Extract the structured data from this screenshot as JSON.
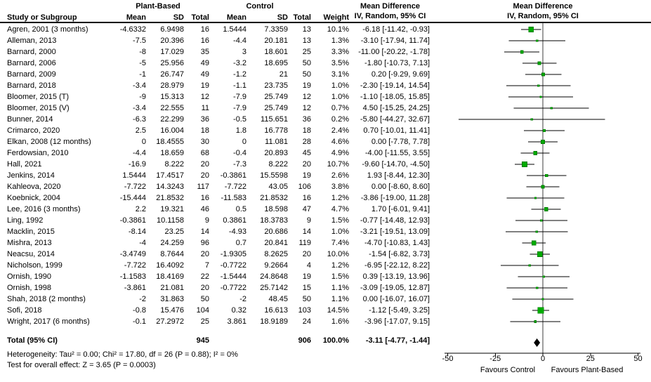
{
  "chart_data": {
    "type": "forest",
    "groups": {
      "experimental": "Plant-Based",
      "control": "Control"
    },
    "effect_header": {
      "title": "Mean Difference",
      "subtitle": "IV, Random, 95% CI"
    },
    "plot_header": {
      "title": "Mean Difference",
      "subtitle": "IV, Random, 95% CI"
    },
    "columns": {
      "study": "Study or Subgroup",
      "mean": "Mean",
      "sd": "SD",
      "total": "Total",
      "weight": "Weight"
    },
    "studies": [
      {
        "name": "Agren, 2001 (3 months)",
        "pb_mean": "-4.6332",
        "pb_sd": "6.9498",
        "pb_n": "16",
        "ctrl_mean": "1.5444",
        "ctrl_sd": "7.3359",
        "ctrl_n": "13",
        "weight": "10.1%",
        "md_label": "-6.18 [-11.42, -0.93]",
        "md": -6.18,
        "ci": [
          -11.42,
          -0.93
        ]
      },
      {
        "name": "Alleman, 2013",
        "pb_mean": "-7.5",
        "pb_sd": "20.396",
        "pb_n": "16",
        "ctrl_mean": "-4.4",
        "ctrl_sd": "20.181",
        "ctrl_n": "13",
        "weight": "1.3%",
        "md_label": "-3.10 [-17.94, 11.74]",
        "md": -3.1,
        "ci": [
          -17.94,
          11.74
        ]
      },
      {
        "name": "Barnard, 2000",
        "pb_mean": "-8",
        "pb_sd": "17.029",
        "pb_n": "35",
        "ctrl_mean": "3",
        "ctrl_sd": "18.601",
        "ctrl_n": "25",
        "weight": "3.3%",
        "md_label": "-11.00 [-20.22, -1.78]",
        "md": -11.0,
        "ci": [
          -20.22,
          -1.78
        ]
      },
      {
        "name": "Barnard, 2006",
        "pb_mean": "-5",
        "pb_sd": "25.956",
        "pb_n": "49",
        "ctrl_mean": "-3.2",
        "ctrl_sd": "18.695",
        "ctrl_n": "50",
        "weight": "3.5%",
        "md_label": "-1.80 [-10.73, 7.13]",
        "md": -1.8,
        "ci": [
          -10.73,
          7.13
        ]
      },
      {
        "name": "Barnard, 2009",
        "pb_mean": "-1",
        "pb_sd": "26.747",
        "pb_n": "49",
        "ctrl_mean": "-1.2",
        "ctrl_sd": "21",
        "ctrl_n": "50",
        "weight": "3.1%",
        "md_label": "0.20 [-9.29, 9.69]",
        "md": 0.2,
        "ci": [
          -9.29,
          9.69
        ]
      },
      {
        "name": "Barnard, 2018",
        "pb_mean": "-3.4",
        "pb_sd": "28.979",
        "pb_n": "19",
        "ctrl_mean": "-1.1",
        "ctrl_sd": "23.735",
        "ctrl_n": "19",
        "weight": "1.0%",
        "md_label": "-2.30 [-19.14, 14.54]",
        "md": -2.3,
        "ci": [
          -19.14,
          14.54
        ]
      },
      {
        "name": "Bloomer, 2015 (T)",
        "pb_mean": "-9",
        "pb_sd": "15.313",
        "pb_n": "12",
        "ctrl_mean": "-7.9",
        "ctrl_sd": "25.749",
        "ctrl_n": "12",
        "weight": "1.0%",
        "md_label": "-1.10 [-18.05, 15.85]",
        "md": -1.1,
        "ci": [
          -18.05,
          15.85
        ]
      },
      {
        "name": "Bloomer, 2015 (V)",
        "pb_mean": "-3.4",
        "pb_sd": "22.555",
        "pb_n": "11",
        "ctrl_mean": "-7.9",
        "ctrl_sd": "25.749",
        "ctrl_n": "12",
        "weight": "0.7%",
        "md_label": "4.50 [-15.25, 24.25]",
        "md": 4.5,
        "ci": [
          -15.25,
          24.25
        ]
      },
      {
        "name": "Bunner, 2014",
        "pb_mean": "-6.3",
        "pb_sd": "22.299",
        "pb_n": "36",
        "ctrl_mean": "-0.5",
        "ctrl_sd": "115.651",
        "ctrl_n": "36",
        "weight": "0.2%",
        "md_label": "-5.80 [-44.27, 32.67]",
        "md": -5.8,
        "ci": [
          -44.27,
          32.67
        ]
      },
      {
        "name": "Crimarco, 2020",
        "pb_mean": "2.5",
        "pb_sd": "16.004",
        "pb_n": "18",
        "ctrl_mean": "1.8",
        "ctrl_sd": "16.778",
        "ctrl_n": "18",
        "weight": "2.4%",
        "md_label": "0.70 [-10.01, 11.41]",
        "md": 0.7,
        "ci": [
          -10.01,
          11.41
        ]
      },
      {
        "name": "Elkan, 2008 (12 months)",
        "pb_mean": "0",
        "pb_sd": "18.4555",
        "pb_n": "30",
        "ctrl_mean": "0",
        "ctrl_sd": "11.081",
        "ctrl_n": "28",
        "weight": "4.6%",
        "md_label": "0.00 [-7.78, 7.78]",
        "md": 0.0,
        "ci": [
          -7.78,
          7.78
        ]
      },
      {
        "name": "Ferdowsian, 2010",
        "pb_mean": "-4.4",
        "pb_sd": "18.659",
        "pb_n": "68",
        "ctrl_mean": "-0.4",
        "ctrl_sd": "20.893",
        "ctrl_n": "45",
        "weight": "4.9%",
        "md_label": "-4.00 [-11.55, 3.55]",
        "md": -4.0,
        "ci": [
          -11.55,
          3.55
        ]
      },
      {
        "name": "Hall, 2021",
        "pb_mean": "-16.9",
        "pb_sd": "8.222",
        "pb_n": "20",
        "ctrl_mean": "-7.3",
        "ctrl_sd": "8.222",
        "ctrl_n": "20",
        "weight": "10.7%",
        "md_label": "-9.60 [-14.70, -4.50]",
        "md": -9.6,
        "ci": [
          -14.7,
          -4.5
        ]
      },
      {
        "name": "Jenkins, 2014",
        "pb_mean": "1.5444",
        "pb_sd": "17.4517",
        "pb_n": "20",
        "ctrl_mean": "-0.3861",
        "ctrl_sd": "15.5598",
        "ctrl_n": "19",
        "weight": "2.6%",
        "md_label": "1.93 [-8.44, 12.30]",
        "md": 1.93,
        "ci": [
          -8.44,
          12.3
        ]
      },
      {
        "name": "Kahleova, 2020",
        "pb_mean": "-7.722",
        "pb_sd": "14.3243",
        "pb_n": "117",
        "ctrl_mean": "-7.722",
        "ctrl_sd": "43.05",
        "ctrl_n": "106",
        "weight": "3.8%",
        "md_label": "0.00 [-8.60, 8.60]",
        "md": 0.0,
        "ci": [
          -8.6,
          8.6
        ]
      },
      {
        "name": "Koebnick, 2004",
        "pb_mean": "-15.444",
        "pb_sd": "21.8532",
        "pb_n": "16",
        "ctrl_mean": "-11.583",
        "ctrl_sd": "21.8532",
        "ctrl_n": "16",
        "weight": "1.2%",
        "md_label": "-3.86 [-19.00, 11.28]",
        "md": -3.86,
        "ci": [
          -19.0,
          11.28
        ]
      },
      {
        "name": "Lee, 2016 (3 months)",
        "pb_mean": "2.2",
        "pb_sd": "19.321",
        "pb_n": "46",
        "ctrl_mean": "0.5",
        "ctrl_sd": "18.598",
        "ctrl_n": "47",
        "weight": "4.7%",
        "md_label": "1.70 [-6.01, 9.41]",
        "md": 1.7,
        "ci": [
          -6.01,
          9.41
        ]
      },
      {
        "name": "Ling, 1992",
        "pb_mean": "-0.3861",
        "pb_sd": "10.1158",
        "pb_n": "9",
        "ctrl_mean": "0.3861",
        "ctrl_sd": "18.3783",
        "ctrl_n": "9",
        "weight": "1.5%",
        "md_label": "-0.77 [-14.48, 12.93]",
        "md": -0.77,
        "ci": [
          -14.48,
          12.93
        ]
      },
      {
        "name": "Macklin, 2015",
        "pb_mean": "-8.14",
        "pb_sd": "23.25",
        "pb_n": "14",
        "ctrl_mean": "-4.93",
        "ctrl_sd": "20.686",
        "ctrl_n": "14",
        "weight": "1.0%",
        "md_label": "-3.21 [-19.51, 13.09]",
        "md": -3.21,
        "ci": [
          -19.51,
          13.09
        ]
      },
      {
        "name": "Mishra, 2013",
        "pb_mean": "-4",
        "pb_sd": "24.259",
        "pb_n": "96",
        "ctrl_mean": "0.7",
        "ctrl_sd": "20.841",
        "ctrl_n": "119",
        "weight": "7.4%",
        "md_label": "-4.70 [-10.83, 1.43]",
        "md": -4.7,
        "ci": [
          -10.83,
          1.43
        ]
      },
      {
        "name": "Neacsu, 2014",
        "pb_mean": "-3.4749",
        "pb_sd": "8.7644",
        "pb_n": "20",
        "ctrl_mean": "-1.9305",
        "ctrl_sd": "8.2625",
        "ctrl_n": "20",
        "weight": "10.0%",
        "md_label": "-1.54 [-6.82, 3.73]",
        "md": -1.54,
        "ci": [
          -6.82,
          3.73
        ]
      },
      {
        "name": "Nicholson, 1999",
        "pb_mean": "-7.722",
        "pb_sd": "16.4092",
        "pb_n": "7",
        "ctrl_mean": "-0.7722",
        "ctrl_sd": "9.2664",
        "ctrl_n": "4",
        "weight": "1.2%",
        "md_label": "-6.95 [-22.12, 8.22]",
        "md": -6.95,
        "ci": [
          -22.12,
          8.22
        ]
      },
      {
        "name": "Ornish, 1990",
        "pb_mean": "-1.1583",
        "pb_sd": "18.4169",
        "pb_n": "22",
        "ctrl_mean": "-1.5444",
        "ctrl_sd": "24.8648",
        "ctrl_n": "19",
        "weight": "1.5%",
        "md_label": "0.39 [-13.19, 13.96]",
        "md": 0.39,
        "ci": [
          -13.19,
          13.96
        ]
      },
      {
        "name": "Ornish, 1998",
        "pb_mean": "-3.861",
        "pb_sd": "21.081",
        "pb_n": "20",
        "ctrl_mean": "-0.7722",
        "ctrl_sd": "25.7142",
        "ctrl_n": "15",
        "weight": "1.1%",
        "md_label": "-3.09 [-19.05, 12.87]",
        "md": -3.09,
        "ci": [
          -19.05,
          12.87
        ]
      },
      {
        "name": "Shah, 2018 (2 months)",
        "pb_mean": "-2",
        "pb_sd": "31.863",
        "pb_n": "50",
        "ctrl_mean": "-2",
        "ctrl_sd": "48.45",
        "ctrl_n": "50",
        "weight": "1.1%",
        "md_label": "0.00 [-16.07, 16.07]",
        "md": 0.0,
        "ci": [
          -16.07,
          16.07
        ]
      },
      {
        "name": "Sofi, 2018",
        "pb_mean": "-0.8",
        "pb_sd": "15.476",
        "pb_n": "104",
        "ctrl_mean": "0.32",
        "ctrl_sd": "16.613",
        "ctrl_n": "103",
        "weight": "14.5%",
        "md_label": "-1.12 [-5.49, 3.25]",
        "md": -1.12,
        "ci": [
          -5.49,
          3.25
        ]
      },
      {
        "name": "Wright, 2017 (6 months)",
        "pb_mean": "-0.1",
        "pb_sd": "27.2972",
        "pb_n": "25",
        "ctrl_mean": "3.861",
        "ctrl_sd": "18.9189",
        "ctrl_n": "24",
        "weight": "1.6%",
        "md_label": "-3.96 [-17.07, 9.15]",
        "md": -3.96,
        "ci": [
          -17.07,
          9.15
        ]
      }
    ],
    "total": {
      "label": "Total (95% CI)",
      "pb_n": "945",
      "ctrl_n": "906",
      "weight": "100.0%",
      "md_label": "-3.11 [-4.77, -1.44]",
      "md": -3.11,
      "ci": [
        -4.77,
        -1.44
      ]
    },
    "heterogeneity": "Heterogeneity: Tau² = 0.00; Chi² = 17.80, df = 26 (P = 0.88); I² = 0%",
    "overall_effect": "Test for overall effect: Z = 3.65 (P = 0.0003)",
    "axis": {
      "xlim": [
        -50,
        50
      ],
      "ticks": [
        -50,
        -25,
        0,
        25,
        50
      ],
      "favours_left": "Favours Control",
      "favours_right": "Favours Plant-Based"
    },
    "colors": {
      "marker": "#00AC00",
      "marker_border": "#007A00",
      "ci_line": "#000000",
      "diamond": "#000000",
      "zero_line": "#3d3d3d"
    }
  }
}
